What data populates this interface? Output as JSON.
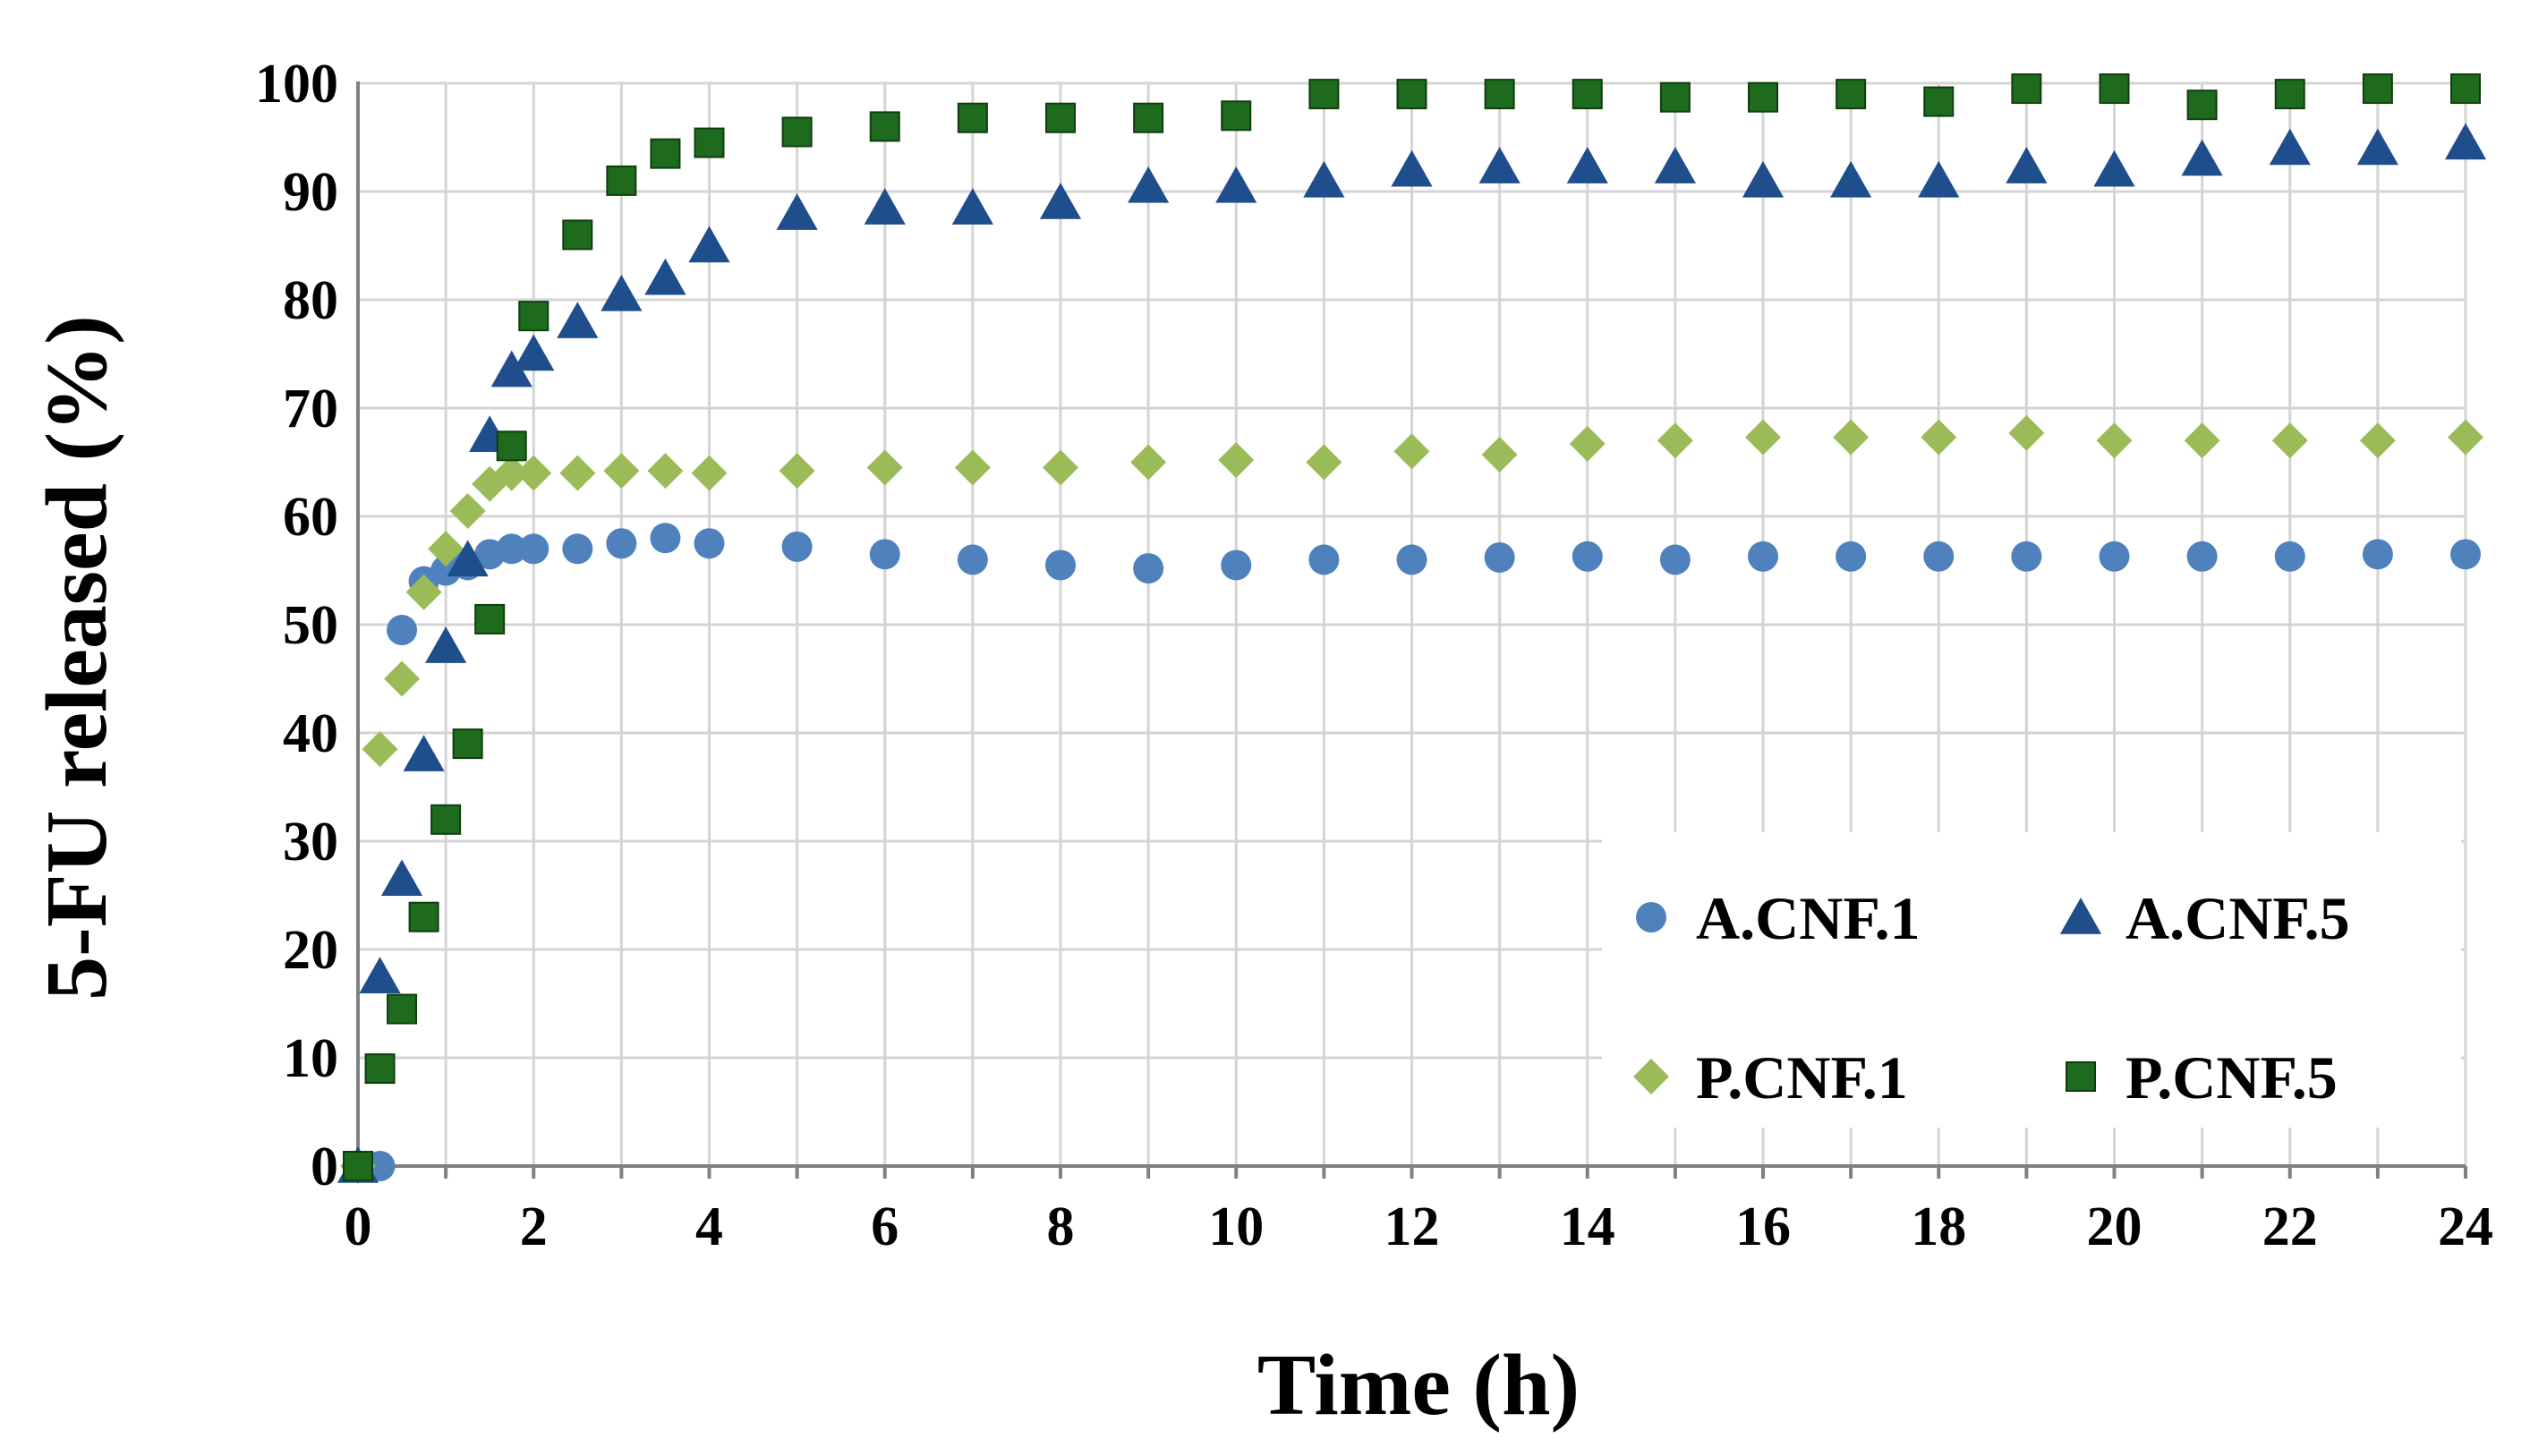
{
  "chart_data": {
    "type": "scatter",
    "title": "",
    "xlabel": "Time (h)",
    "ylabel": "5-FU released (%)",
    "xlim": [
      0,
      24
    ],
    "ylim": [
      0,
      100
    ],
    "x_ticks": [
      "0",
      "2",
      "4",
      "6",
      "8",
      "10",
      "12",
      "14",
      "16",
      "18",
      "20",
      "22",
      "24"
    ],
    "y_ticks": [
      "0",
      "10",
      "20",
      "30",
      "40",
      "50",
      "60",
      "70",
      "80",
      "90",
      "100"
    ],
    "grid": true,
    "legend_position": "bottom-right",
    "series": [
      {
        "name": "A.CNF.1",
        "marker": "circle",
        "color": "#4f81bd",
        "points": [
          [
            0,
            0
          ],
          [
            0.25,
            0
          ],
          [
            0.5,
            49.5
          ],
          [
            0.75,
            54
          ],
          [
            1,
            55
          ],
          [
            1.25,
            55.5
          ],
          [
            1.5,
            56.5
          ],
          [
            1.75,
            57
          ],
          [
            2,
            57
          ],
          [
            2.5,
            57
          ],
          [
            3,
            57.5
          ],
          [
            3.5,
            58
          ],
          [
            4,
            57.5
          ],
          [
            5,
            57.2
          ],
          [
            6,
            56.5
          ],
          [
            7,
            56
          ],
          [
            8,
            55.5
          ],
          [
            9,
            55.2
          ],
          [
            10,
            55.5
          ],
          [
            11,
            56
          ],
          [
            12,
            56
          ],
          [
            13,
            56.2
          ],
          [
            14,
            56.3
          ],
          [
            15,
            56
          ],
          [
            16,
            56.3
          ],
          [
            17,
            56.3
          ],
          [
            18,
            56.3
          ],
          [
            19,
            56.3
          ],
          [
            20,
            56.3
          ],
          [
            21,
            56.3
          ],
          [
            22,
            56.3
          ],
          [
            23,
            56.5
          ],
          [
            24,
            56.5
          ]
        ]
      },
      {
        "name": "A.CNF.5",
        "marker": "triangle",
        "color": "#1f4e8c",
        "points": [
          [
            0,
            0
          ],
          [
            0.25,
            17.5
          ],
          [
            0.5,
            26.5
          ],
          [
            0.75,
            38
          ],
          [
            1,
            48
          ],
          [
            1.25,
            56
          ],
          [
            1.5,
            67.5
          ],
          [
            1.75,
            73.5
          ],
          [
            2,
            75
          ],
          [
            2.5,
            78
          ],
          [
            3,
            80.5
          ],
          [
            3.5,
            82
          ],
          [
            4,
            85
          ],
          [
            5,
            88
          ],
          [
            6,
            88.5
          ],
          [
            7,
            88.5
          ],
          [
            8,
            89
          ],
          [
            9,
            90.5
          ],
          [
            10,
            90.5
          ],
          [
            11,
            91
          ],
          [
            12,
            92
          ],
          [
            13,
            92.3
          ],
          [
            14,
            92.3
          ],
          [
            15,
            92.3
          ],
          [
            16,
            91
          ],
          [
            17,
            91
          ],
          [
            18,
            91
          ],
          [
            19,
            92.3
          ],
          [
            20,
            92
          ],
          [
            21,
            93
          ],
          [
            22,
            94
          ],
          [
            23,
            94
          ],
          [
            24,
            94.5
          ]
        ]
      },
      {
        "name": "P.CNF.1",
        "marker": "diamond",
        "color": "#9bbb59",
        "points": [
          [
            0,
            0
          ],
          [
            0.25,
            38.5
          ],
          [
            0.5,
            45
          ],
          [
            0.75,
            53
          ],
          [
            1,
            57
          ],
          [
            1.25,
            60.5
          ],
          [
            1.5,
            63
          ],
          [
            1.75,
            64
          ],
          [
            2,
            64
          ],
          [
            2.5,
            64
          ],
          [
            3,
            64.2
          ],
          [
            3.5,
            64.2
          ],
          [
            4,
            64
          ],
          [
            5,
            64.2
          ],
          [
            6,
            64.5
          ],
          [
            7,
            64.5
          ],
          [
            8,
            64.5
          ],
          [
            9,
            65
          ],
          [
            10,
            65.2
          ],
          [
            11,
            65
          ],
          [
            12,
            66
          ],
          [
            13,
            65.7
          ],
          [
            14,
            66.7
          ],
          [
            15,
            67
          ],
          [
            16,
            67.3
          ],
          [
            17,
            67.3
          ],
          [
            18,
            67.3
          ],
          [
            19,
            67.7
          ],
          [
            20,
            67
          ],
          [
            21,
            67
          ],
          [
            22,
            67
          ],
          [
            23,
            67
          ],
          [
            24,
            67.3
          ]
        ]
      },
      {
        "name": "P.CNF.5",
        "marker": "square",
        "color": "#1e6b1e",
        "points": [
          [
            0,
            0
          ],
          [
            0.25,
            9
          ],
          [
            0.5,
            14.5
          ],
          [
            0.75,
            23
          ],
          [
            1,
            32
          ],
          [
            1.25,
            39
          ],
          [
            1.5,
            50.5
          ],
          [
            1.75,
            66.5
          ],
          [
            2,
            78.5
          ],
          [
            2.5,
            86
          ],
          [
            3,
            91
          ],
          [
            3.5,
            93.5
          ],
          [
            4,
            94.5
          ],
          [
            5,
            95.5
          ],
          [
            6,
            96
          ],
          [
            7,
            96.8
          ],
          [
            8,
            96.8
          ],
          [
            9,
            96.8
          ],
          [
            10,
            97
          ],
          [
            11,
            99
          ],
          [
            12,
            99
          ],
          [
            13,
            99
          ],
          [
            14,
            99
          ],
          [
            15,
            98.7
          ],
          [
            16,
            98.7
          ],
          [
            17,
            99
          ],
          [
            18,
            98.3
          ],
          [
            19,
            99.5
          ],
          [
            20,
            99.5
          ],
          [
            21,
            98
          ],
          [
            22,
            99
          ],
          [
            23,
            99.5
          ],
          [
            24,
            99.5
          ]
        ]
      }
    ]
  }
}
